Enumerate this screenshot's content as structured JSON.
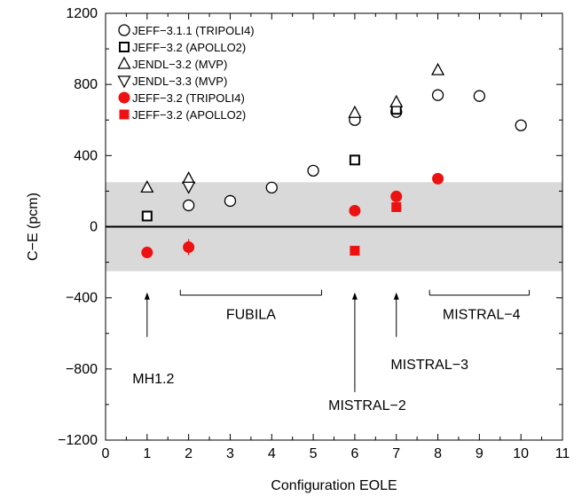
{
  "chart_data": {
    "type": "scatter",
    "xlabel": "Configuration EOLE",
    "ylabel": "C−E (pcm)",
    "xlim": [
      0,
      11
    ],
    "ylim": [
      -1200,
      1200
    ],
    "x_ticks": [
      "0",
      "1",
      "2",
      "3",
      "4",
      "5",
      "6",
      "7",
      "8",
      "9",
      "10",
      "11"
    ],
    "y_ticks": [
      "−1200",
      "−800",
      "−400",
      "0",
      "400",
      "800",
      "1200"
    ],
    "x_tick_values": [
      0,
      1,
      2,
      3,
      4,
      5,
      6,
      7,
      8,
      9,
      10,
      11
    ],
    "y_tick_values": [
      -1200,
      -800,
      -400,
      0,
      400,
      800,
      1200
    ],
    "uncertainty_band": [
      -250,
      250
    ],
    "uncertainty_band_color": "#d9d9d9",
    "legend_position": "top-left",
    "series": [
      {
        "name": "JEFF−3.1.1 (TRIPOLI4)",
        "marker": "circle-open",
        "color": "#000000",
        "points": [
          [
            2,
            120
          ],
          [
            3,
            145
          ],
          [
            4,
            220
          ],
          [
            5,
            315
          ],
          [
            6,
            600
          ],
          [
            7,
            645
          ],
          [
            8,
            740
          ],
          [
            9,
            735
          ],
          [
            10,
            570
          ]
        ]
      },
      {
        "name": "JEFF−3.2 (APOLLO2)",
        "marker": "square-open",
        "color": "#000000",
        "points": [
          [
            1,
            60
          ],
          [
            6,
            375
          ],
          [
            7,
            660
          ]
        ]
      },
      {
        "name": "JENDL−3.2 (MVP)",
        "marker": "triangle-up-open",
        "color": "#000000",
        "points": [
          [
            1,
            220
          ],
          [
            2,
            270
          ],
          [
            6,
            640
          ],
          [
            7,
            700
          ],
          [
            8,
            880
          ]
        ]
      },
      {
        "name": "JENDL−3.3 (MVP)",
        "marker": "triangle-down-open",
        "color": "#000000",
        "points": [
          [
            2,
            225
          ]
        ]
      },
      {
        "name": "JEFF−3.2 (TRIPOLI4)",
        "marker": "circle-filled",
        "color": "#ee1111",
        "points": [
          [
            1,
            -145
          ],
          [
            2,
            -115
          ],
          [
            6,
            90
          ],
          [
            7,
            170
          ],
          [
            8,
            270
          ]
        ]
      },
      {
        "name": "JEFF−3.2 (APOLLO2)",
        "marker": "square-filled",
        "color": "#ee1111",
        "points": [
          [
            6,
            -135
          ],
          [
            7,
            110
          ]
        ]
      }
    ],
    "annotations": [
      {
        "text": "MH1.2",
        "arrow_x": 1,
        "arrow_y": -370,
        "arrow_tail_y": -620,
        "text_x": 1.15,
        "text_y": -880
      },
      {
        "text": "FUBILA",
        "bracket": [
          1.8,
          5.2
        ],
        "bracket_y": -385,
        "text_x": 3.5,
        "text_y": -520
      },
      {
        "text": "MISTRAL−2",
        "arrow_x": 6,
        "arrow_y": -370,
        "arrow_tail_y": -930,
        "text_x": 6.3,
        "text_y": -1030
      },
      {
        "text": "MISTRAL−3",
        "arrow_x": 7,
        "arrow_y": -370,
        "arrow_tail_y": -620,
        "text_x": 7.8,
        "text_y": -800
      },
      {
        "text": "MISTRAL−4",
        "bracket": [
          7.8,
          10.2
        ],
        "bracket_y": -385,
        "text_x": 9.05,
        "text_y": -520
      }
    ]
  }
}
